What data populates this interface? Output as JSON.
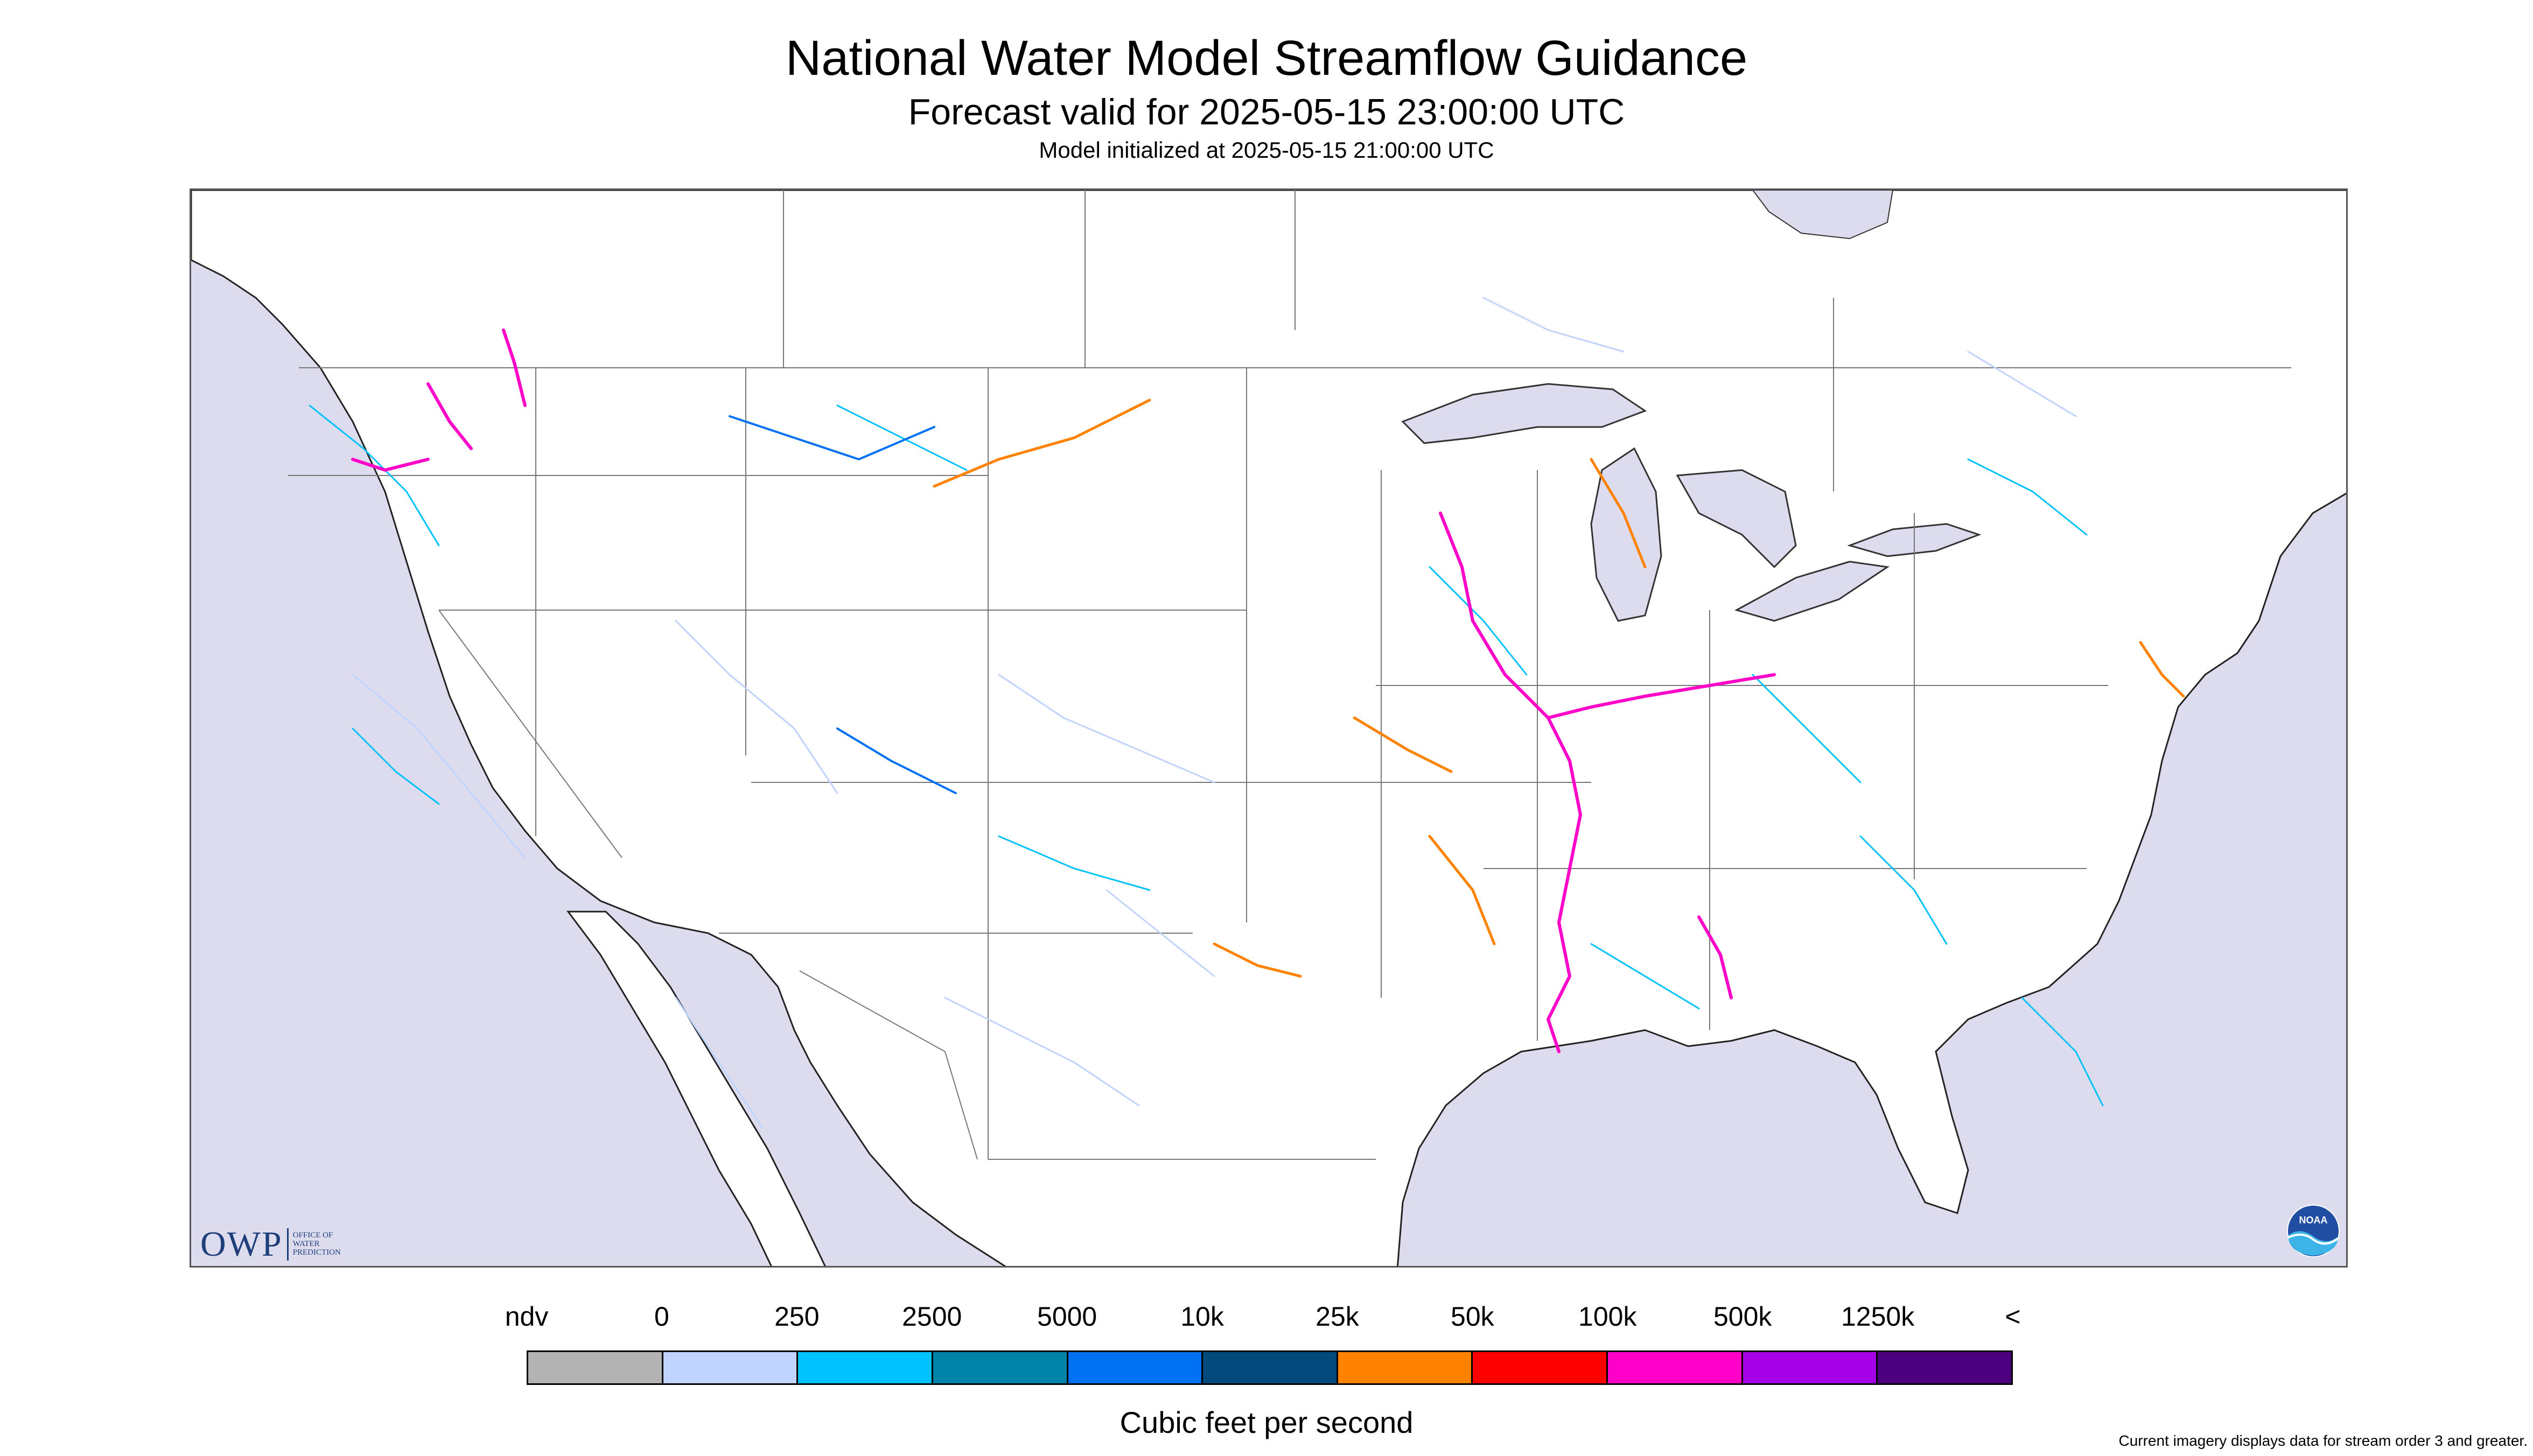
{
  "header": {
    "title": "National Water Model Streamflow Guidance",
    "forecast_valid": "Forecast valid for 2025-05-15 23:00:00 UTC",
    "model_initialized": "Model initialized at 2025-05-15 21:00:00 UTC"
  },
  "map": {
    "region": "Continental United States",
    "background_water_color": "#dcdcee",
    "land_color": "#ffffff",
    "border_color": "#555555",
    "legend_reference": "legend.bins"
  },
  "logos": {
    "owp": {
      "letters": "OWP",
      "line1": "OFFICE OF",
      "line2": "WATER",
      "line3": "PREDICTION",
      "color": "#1f3f7a"
    },
    "noaa": {
      "text": "NOAA",
      "icon": "noaa-seal-icon"
    }
  },
  "legend": {
    "labels": [
      "ndv",
      "0",
      "250",
      "2500",
      "5000",
      "10k",
      "25k",
      "50k",
      "100k",
      "500k",
      "1250k",
      "<"
    ],
    "colors": [
      "#b3b3b3",
      "#c1d3ff",
      "#00c2ff",
      "#0083a8",
      "#0071f2",
      "#014a7b",
      "#ff8200",
      "#ff0000",
      "#ff00c8",
      "#a500e6",
      "#4c007f"
    ],
    "units": "Cubic feet per second"
  },
  "footnote": "Current imagery displays data for stream order 3 and greater."
}
